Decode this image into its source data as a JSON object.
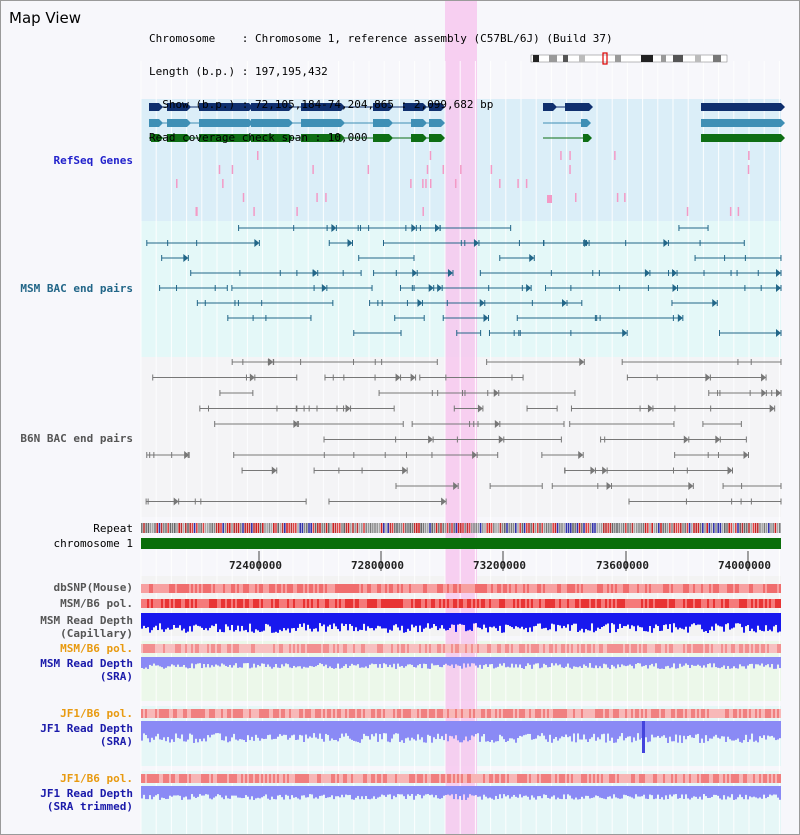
{
  "title": "Map View",
  "header": {
    "line1": "Chromosome    : Chromosome 1, reference assembly (C57BL/6J) (Build 37)",
    "line2": "Length (b.p.) : 197,195,432",
    "line3": "  Show (b.p.) : 72,105,184-74,204,865 : 2,099,682 bp",
    "line4": "Read coverage check span : 10,000"
  },
  "tracks": {
    "refseq": "RefSeq Genes",
    "msm_bac": "MSM BAC end pairs",
    "b6n_bac": "B6N BAC end pairs",
    "repeat": "Repeat",
    "chromosome": "chromosome 1",
    "dbsnp": "dbSNP(Mouse)",
    "msm_pol1": "MSM/B6 pol.",
    "msm_depth_cap1": "MSM Read Depth",
    "msm_depth_cap2": "(Capillary)",
    "msm_pol2": "MSM/B6 pol.",
    "msm_depth_sra1": "MSM Read Depth",
    "msm_depth_sra2": "(SRA)",
    "jf1_pol1": "JF1/B6 pol.",
    "jf1_depth1": "JF1 Read Depth",
    "jf1_depth2": "(SRA)",
    "jf1_pol2": "JF1/B6 pol.",
    "jf1_trim1": "JF1 Read Depth",
    "jf1_trim2": "(SRA trimmed)"
  },
  "axis": {
    "ticks": [
      "72400000",
      "72800000",
      "73200000",
      "73600000",
      "74000000"
    ]
  },
  "colors": {
    "refseq_label": "#2222cc",
    "msm_bac_label": "#226688",
    "b6n_bac_label": "#555555",
    "pol_label_orange": "#e89a10",
    "depth_label_blue": "#1a1aaa",
    "gene_dark": "#0f2f6e",
    "gene_mid": "#3f8fb5",
    "gene_green": "#0e6e14",
    "highlight": "#f7c8ee",
    "chromosome_bar": "#0a6e0a",
    "depth_capillary": "#1818ee",
    "depth_sra": "#8a8af5"
  }
}
